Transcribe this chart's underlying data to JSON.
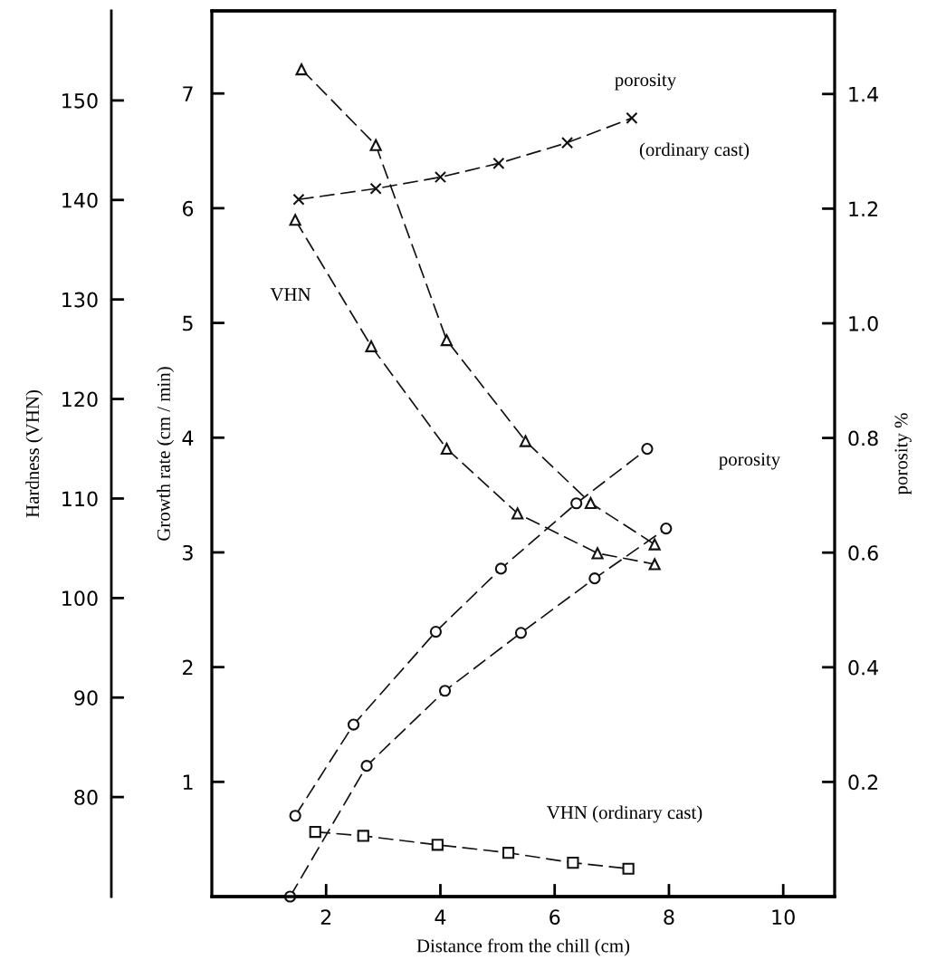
{
  "chart_data": {
    "type": "line",
    "xlabel": "Distance from the chill (cm)",
    "ylabel": "Growth rate (cm / min)",
    "y2label": "porosity %",
    "y3label": "Hardness (VHN)",
    "xlim": [
      0,
      10.9
    ],
    "xticks": [
      2,
      4,
      6,
      8,
      10
    ],
    "ylim": [
      0,
      7.72
    ],
    "yticks": [
      1,
      2,
      3,
      4,
      5,
      6,
      7
    ],
    "y2lim": [
      0,
      1.545
    ],
    "y2ticks": [
      {
        "value": 0.2,
        "label": "0.2"
      },
      {
        "value": 0.4,
        "label": "0.4"
      },
      {
        "value": 0.6,
        "label": "0.6"
      },
      {
        "value": 0.8,
        "label": "0.8"
      },
      {
        "value": 1.0,
        "label": "1.0"
      },
      {
        "value": 1.2,
        "label": "1.2"
      },
      {
        "value": 1.4,
        "label": "1.4"
      }
    ],
    "y3lim": [
      70,
      159
    ],
    "y3ticks": [
      80,
      90,
      100,
      110,
      120,
      130,
      140,
      150
    ],
    "line_style": "dashed",
    "series": [
      {
        "color": "#111111",
        "axis": "y",
        "marker": "triangle",
        "x": [
          1.57,
          2.87,
          4.11,
          5.49,
          6.63,
          7.75
        ],
        "values": [
          7.21,
          6.55,
          4.85,
          3.97,
          3.43,
          3.07
        ]
      },
      {
        "color": "#111111",
        "axis": "y3",
        "marker": "triangle",
        "x": [
          1.46,
          2.79,
          4.11,
          5.35,
          6.75,
          7.75
        ],
        "values": [
          138.0,
          125.3,
          115.0,
          108.5,
          104.5,
          103.4
        ]
      },
      {
        "color": "#111111",
        "axis": "y2",
        "marker": "cross",
        "x": [
          1.52,
          2.87,
          4.0,
          5.02,
          6.22,
          7.35
        ],
        "values": [
          1.216,
          1.235,
          1.255,
          1.279,
          1.315,
          1.358
        ]
      },
      {
        "color": "#111111",
        "axis": "y2",
        "marker": "circle",
        "x": [
          1.46,
          2.48,
          3.92,
          5.06,
          6.38,
          7.62
        ],
        "values": [
          0.141,
          0.3,
          0.462,
          0.572,
          0.686,
          0.781
        ]
      },
      {
        "color": "#111111",
        "axis": "y2",
        "marker": "circle",
        "x": [
          1.37,
          2.71,
          4.08,
          5.41,
          6.7,
          7.95
        ],
        "values": [
          0.0,
          0.228,
          0.359,
          0.46,
          0.555,
          0.642
        ]
      },
      {
        "color": "#111111",
        "axis": "y3",
        "marker": "square",
        "x": [
          1.81,
          2.65,
          3.95,
          5.19,
          6.32,
          7.29
        ],
        "values": [
          76.5,
          76.1,
          75.2,
          74.4,
          73.4,
          72.8
        ]
      }
    ],
    "annotations": [
      "VHN",
      "porosity",
      "(ordinary cast)",
      "porosity",
      "VHN (ordinary cast)"
    ]
  }
}
